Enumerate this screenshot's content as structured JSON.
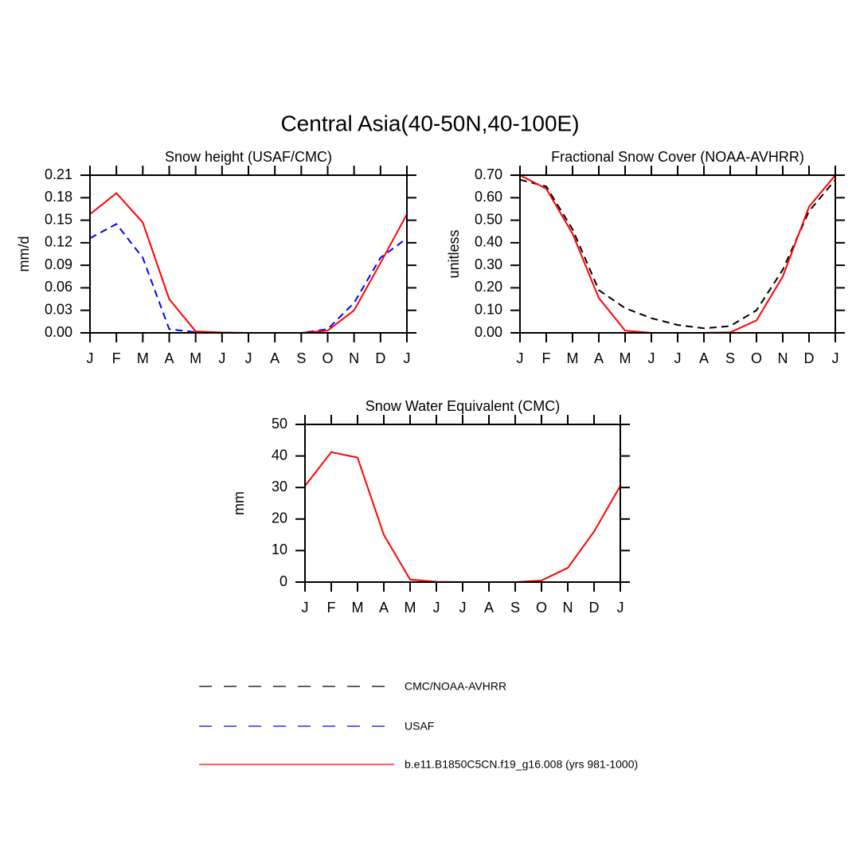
{
  "title": "Central Asia(40-50N,40-100E)",
  "chart_data": [
    {
      "type": "line",
      "title": "Snow height (USAF/CMC)",
      "y_label": "mm/d",
      "categories": [
        "J",
        "F",
        "M",
        "A",
        "M",
        "J",
        "J",
        "A",
        "S",
        "O",
        "N",
        "D",
        "J"
      ],
      "ylim": [
        0,
        0.21
      ],
      "yticks": [
        {
          "value": 0,
          "label": "0.00"
        },
        {
          "value": 0.03,
          "label": "0.03"
        },
        {
          "value": 0.06,
          "label": "0.06"
        },
        {
          "value": 0.09,
          "label": "0.09"
        },
        {
          "value": 0.12,
          "label": "0.12"
        },
        {
          "value": 0.15,
          "label": "0.15"
        },
        {
          "value": 0.18,
          "label": "0.18"
        },
        {
          "value": 0.21,
          "label": "0.21"
        }
      ],
      "series": [
        {
          "name": "CMC/NOAA-AVHRR",
          "color": "#000000",
          "line_style": "dashed",
          "values": [
            0,
            0,
            0,
            0,
            0,
            0,
            0,
            0,
            0,
            0,
            0,
            0,
            0
          ]
        },
        {
          "name": "USAF",
          "color": "#0000ff",
          "line_style": "dashed",
          "values": [
            0.126,
            0.145,
            0.1,
            0.005,
            0.001,
            0,
            0,
            0,
            0,
            0.005,
            0.04,
            0.1,
            0.126
          ]
        },
        {
          "name": "b.e11.B1850C5CN.f19_g16.008 (yrs 981-1000)",
          "color": "#ff0000",
          "line_style": "solid",
          "values": [
            0.158,
            0.186,
            0.147,
            0.045,
            0.002,
            0.0005,
            0,
            0,
            0,
            0.003,
            0.03,
            0.093,
            0.158
          ]
        }
      ]
    },
    {
      "type": "line",
      "title": "Fractional Snow Cover (NOAA-AVHRR)",
      "y_label": "unitless",
      "categories": [
        "J",
        "F",
        "M",
        "A",
        "M",
        "J",
        "J",
        "A",
        "S",
        "O",
        "N",
        "D",
        "J"
      ],
      "ylim": [
        0,
        0.7
      ],
      "yticks": [
        {
          "value": 0,
          "label": "0.00"
        },
        {
          "value": 0.1,
          "label": "0.10"
        },
        {
          "value": 0.2,
          "label": "0.20"
        },
        {
          "value": 0.3,
          "label": "0.30"
        },
        {
          "value": 0.4,
          "label": "0.40"
        },
        {
          "value": 0.5,
          "label": "0.50"
        },
        {
          "value": 0.6,
          "label": "0.60"
        },
        {
          "value": 0.7,
          "label": "0.70"
        }
      ],
      "series": [
        {
          "name": "CMC/NOAA-AVHRR",
          "color": "#000000",
          "line_style": "dashed",
          "values": [
            0.68,
            0.65,
            0.46,
            0.19,
            0.11,
            0.065,
            0.035,
            0.02,
            0.03,
            0.1,
            0.28,
            0.54,
            0.68
          ]
        },
        {
          "name": "b.e11.B1850C5CN.f19_g16.008 (yrs 981-1000)",
          "color": "#ff0000",
          "line_style": "solid",
          "values": [
            0.7,
            0.64,
            0.44,
            0.155,
            0.01,
            0,
            0,
            0,
            0.002,
            0.055,
            0.25,
            0.56,
            0.7
          ]
        }
      ]
    },
    {
      "type": "line",
      "title": "Snow Water Equivalent (CMC)",
      "y_label": "mm",
      "categories": [
        "J",
        "F",
        "M",
        "A",
        "M",
        "J",
        "J",
        "A",
        "S",
        "O",
        "N",
        "D",
        "J"
      ],
      "ylim": [
        0,
        50
      ],
      "yticks": [
        0,
        10,
        20,
        30,
        40,
        50
      ],
      "series": [
        {
          "name": "CMC/NOAA-AVHRR",
          "color": "#000000",
          "line_style": "dashed",
          "values": [
            0,
            0,
            0,
            0,
            0,
            0,
            0,
            0,
            0,
            0,
            0,
            0,
            0
          ]
        },
        {
          "name": "b.e11.B1850C5CN.f19_g16.008 (yrs 981-1000)",
          "color": "#ff0000",
          "line_style": "solid",
          "values": [
            30.5,
            41.2,
            39.5,
            15,
            0.8,
            0.1,
            0,
            0,
            0,
            0.5,
            4.5,
            16,
            30.5
          ]
        }
      ]
    }
  ]
}
